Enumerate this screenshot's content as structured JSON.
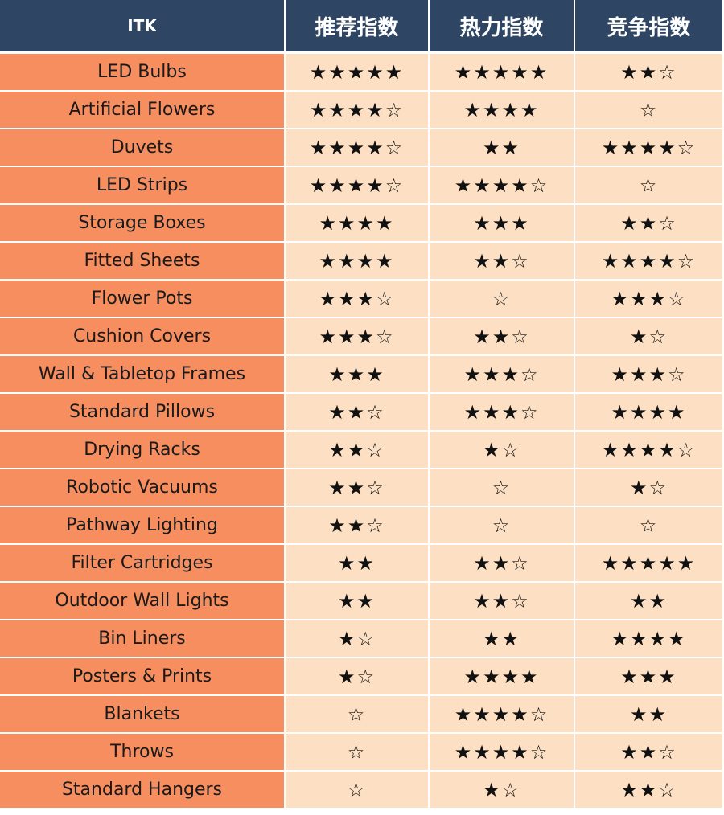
{
  "headers": [
    "ITK",
    "推荐指数",
    "热力指数",
    "竞争指数"
  ],
  "rows": [
    {
      "name": "LED Bulbs",
      "recommend": "★★★★★",
      "heat": "★★★★★",
      "competition": "★★☆"
    },
    {
      "name": "Artificial Flowers",
      "recommend": "★★★★☆",
      "heat": "★★★★",
      "competition": "☆"
    },
    {
      "name": "Duvets",
      "recommend": "★★★★☆",
      "heat": "★★",
      "competition": "★★★★☆"
    },
    {
      "name": "LED Strips",
      "recommend": "★★★★☆",
      "heat": "★★★★☆",
      "competition": "☆"
    },
    {
      "name": "Storage Boxes",
      "recommend": "★★★★",
      "heat": "★★★",
      "competition": "★★☆"
    },
    {
      "name": "Fitted Sheets",
      "recommend": "★★★★",
      "heat": "★★☆",
      "competition": "★★★★☆"
    },
    {
      "name": "Flower Pots",
      "recommend": "★★★☆",
      "heat": "☆",
      "competition": "★★★☆"
    },
    {
      "name": "Cushion Covers",
      "recommend": "★★★☆",
      "heat": "★★☆",
      "competition": "★☆"
    },
    {
      "name": "Wall & Tabletop Frames",
      "recommend": "★★★",
      "heat": "★★★☆",
      "competition": "★★★☆"
    },
    {
      "name": "Standard Pillows",
      "recommend": "★★☆",
      "heat": "★★★☆",
      "competition": "★★★★"
    },
    {
      "name": "Drying Racks",
      "recommend": "★★☆",
      "heat": "★☆",
      "competition": "★★★★☆"
    },
    {
      "name": "Robotic Vacuums",
      "recommend": "★★☆",
      "heat": "☆",
      "competition": "★☆"
    },
    {
      "name": "Pathway Lighting",
      "recommend": "★★☆",
      "heat": "☆",
      "competition": "☆"
    },
    {
      "name": "Filter Cartridges",
      "recommend": "★★",
      "heat": "★★☆",
      "competition": "★★★★★"
    },
    {
      "name": "Outdoor Wall Lights",
      "recommend": "★★",
      "heat": "★★☆",
      "competition": "★★"
    },
    {
      "name": "Bin Liners",
      "recommend": "★☆",
      "heat": "★★",
      "competition": "★★★★"
    },
    {
      "name": "Posters & Prints",
      "recommend": "★☆",
      "heat": "★★★★",
      "competition": "★★★"
    },
    {
      "name": "Blankets",
      "recommend": "☆",
      "heat": "★★★★☆",
      "competition": "★★"
    },
    {
      "name": "Throws",
      "recommend": "☆",
      "heat": "★★★★☆",
      "competition": "★★☆"
    },
    {
      "name": "Standard Hangers",
      "recommend": "☆",
      "heat": "★☆",
      "competition": "★★☆"
    }
  ],
  "colors": {
    "header_bg": "#2e4663",
    "name_col_bg": "#f68e5f",
    "stars_bg": "#fde0c3"
  }
}
